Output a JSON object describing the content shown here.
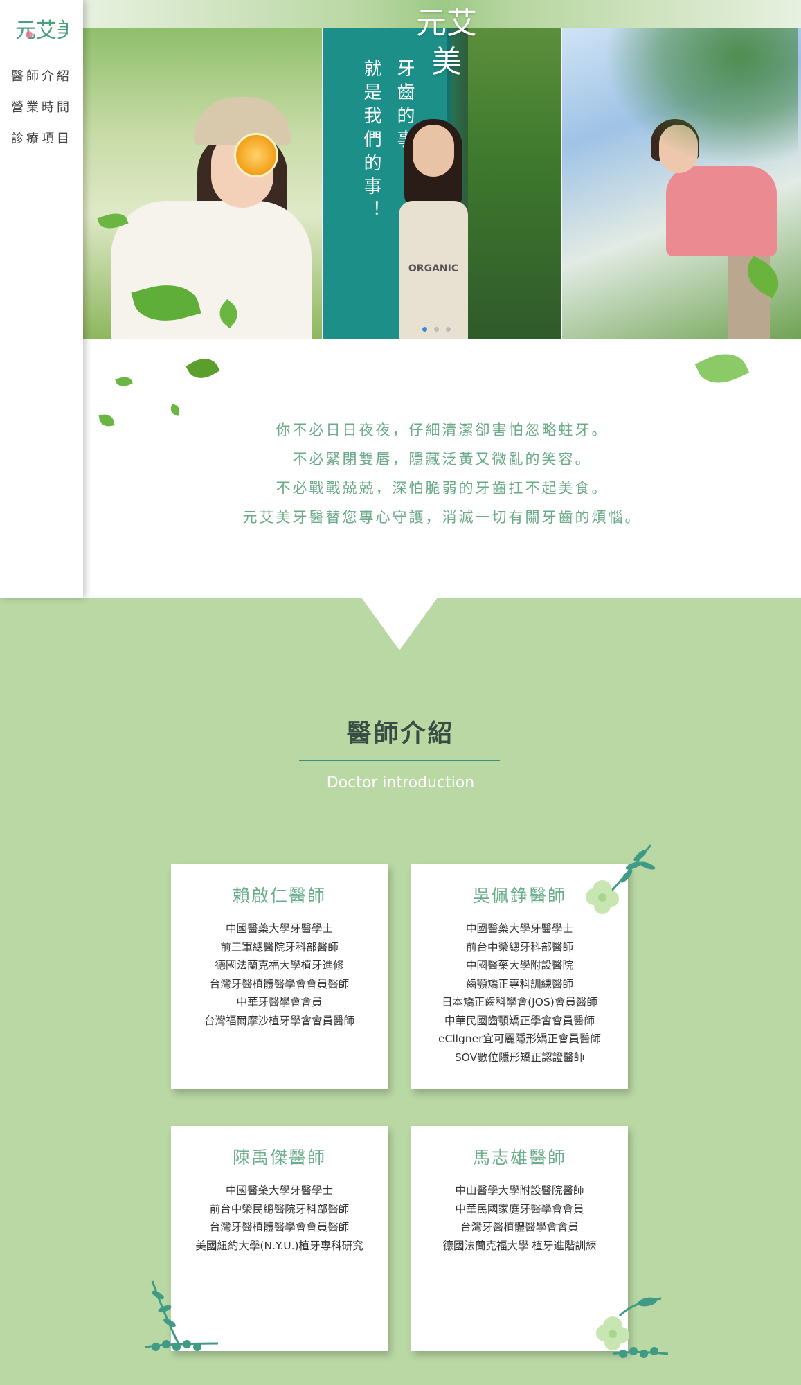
{
  "sidebar": {
    "logo_text": "元艾美",
    "nav": [
      "醫師介紹",
      "營業時間",
      "診療項目"
    ]
  },
  "hero": {
    "logo_text": "元艾美",
    "door_text_right": "牙齒的事，",
    "door_text_left": "就是我們的事！",
    "apron_text": "ORGANIC",
    "slide_count": 3,
    "active_slide": 1
  },
  "intro": {
    "lines": [
      "你不必日日夜夜，仔細清潔卻害怕忽略蛀牙。",
      "不必緊閉雙唇，隱藏泛黃又微亂的笑容。",
      "不必戰戰兢兢，深怕脆弱的牙齒扛不起美食。",
      "元艾美牙醫替您專心守護，消滅一切有關牙齒的煩惱。"
    ]
  },
  "doctors_section": {
    "title": "醫師介紹",
    "subtitle": "Doctor introduction",
    "doctors": [
      {
        "name": "賴啟仁醫師",
        "credentials": [
          "中國醫藥大學牙醫學士",
          "前三軍總醫院牙科部醫師",
          "德國法蘭克福大學植牙進修",
          "台灣牙醫植體醫學會會員醫師",
          "中華牙醫學會會員",
          "台灣福爾摩沙植牙學會會員醫師"
        ]
      },
      {
        "name": "吳佩錚醫師",
        "credentials": [
          "中國醫藥大學牙醫學士",
          "前台中榮總牙科部醫師",
          "中國醫藥大學附設醫院",
          "齒顎矯正專科訓練醫師",
          "日本矯正齒科學會(JOS)會員醫師",
          "中華民國齒顎矯正學會會員醫師",
          "eCllgner宜可麗隱形矯正會員醫師",
          "SOV數位隱形矯正認證醫師"
        ]
      },
      {
        "name": "陳禹傑醫師",
        "credentials": [
          "中國醫藥大學牙醫學士",
          "前台中榮民總醫院牙科部醫師",
          "台灣牙醫植體醫學會會員醫師",
          "美國紐約大學(N.Y.U.)植牙專科研究"
        ]
      },
      {
        "name": "馬志雄醫師",
        "credentials": [
          "中山醫學大學附設醫院醫師",
          "中華民國家庭牙醫學會會員",
          "台灣牙醫植體醫學會會員",
          "德國法蘭克福大學 植牙進階訓練"
        ]
      }
    ]
  },
  "colors": {
    "brand_green": "#6bae8b",
    "section_bg": "#b9d8a4",
    "title_dark": "#3a4d45"
  }
}
